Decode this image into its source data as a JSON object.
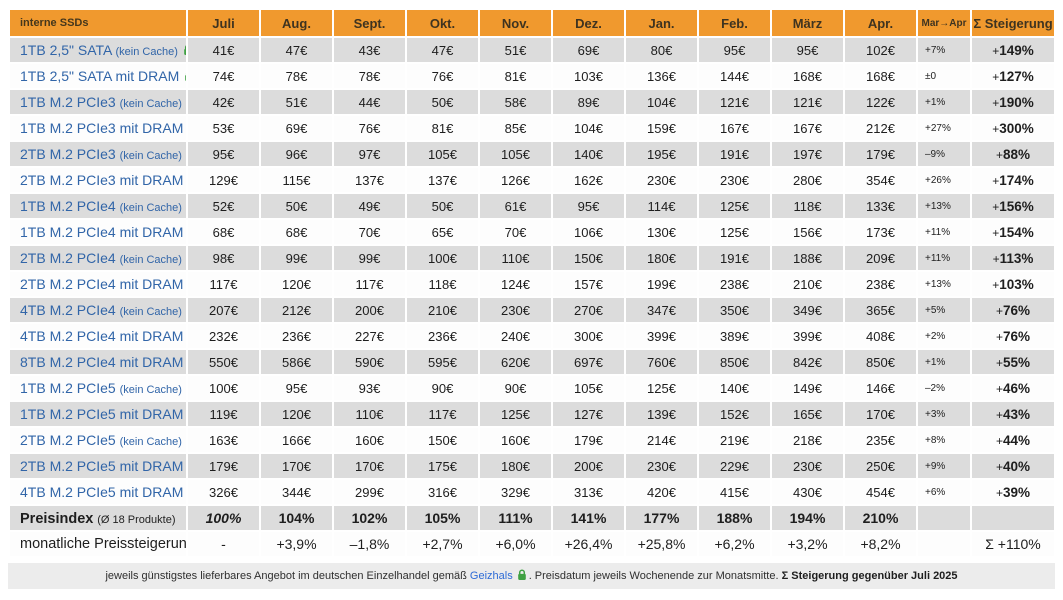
{
  "header": {
    "label": "interne SSDs",
    "mar_apr": "Mar→Apr",
    "steigerung": "Σ Steigerung"
  },
  "colors": {
    "accent_orange": "#f0992e",
    "stripe_gray": "#dcdcdc",
    "product_blue": "#3165a8",
    "lock_green": "#3fa142",
    "link_blue": "#2e6bd6"
  },
  "chart_data": {
    "type": "table",
    "title": "interne SSDs",
    "columns": [
      "interne SSDs",
      "Juli",
      "Aug.",
      "Sept.",
      "Okt.",
      "Nov.",
      "Dez.",
      "Jan.",
      "Feb.",
      "März",
      "Apr.",
      "Mar→Apr",
      "Σ Steigerung"
    ],
    "months": [
      "Juli",
      "Aug.",
      "Sept.",
      "Okt.",
      "Nov.",
      "Dez.",
      "Jan.",
      "Feb.",
      "März",
      "Apr."
    ],
    "rows": [
      {
        "label": "1TB 2,5\" SATA",
        "note": "(kein Cache)",
        "prices": [
          "41€",
          "47€",
          "43€",
          "47€",
          "51€",
          "69€",
          "80€",
          "95€",
          "95€",
          "102€"
        ],
        "mar_apr": "+7%",
        "steigerung": "+149%"
      },
      {
        "label": "1TB 2,5\" SATA mit DRAM",
        "note": "",
        "prices": [
          "74€",
          "78€",
          "78€",
          "76€",
          "81€",
          "103€",
          "136€",
          "144€",
          "168€",
          "168€"
        ],
        "mar_apr": "±0",
        "steigerung": "+127%"
      },
      {
        "label": "1TB M.2 PCIe3",
        "note": "(kein Cache)",
        "prices": [
          "42€",
          "51€",
          "44€",
          "50€",
          "58€",
          "89€",
          "104€",
          "121€",
          "121€",
          "122€"
        ],
        "mar_apr": "+1%",
        "steigerung": "+190%"
      },
      {
        "label": "1TB M.2 PCIe3 mit DRAM",
        "note": "",
        "prices": [
          "53€",
          "69€",
          "76€",
          "81€",
          "85€",
          "104€",
          "159€",
          "167€",
          "167€",
          "212€"
        ],
        "mar_apr": "+27%",
        "steigerung": "+300%"
      },
      {
        "label": "2TB M.2 PCIe3",
        "note": "(kein Cache)",
        "prices": [
          "95€",
          "96€",
          "97€",
          "105€",
          "105€",
          "140€",
          "195€",
          "191€",
          "197€",
          "179€"
        ],
        "mar_apr": "–9%",
        "steigerung": "+88%"
      },
      {
        "label": "2TB M.2 PCIe3 mit DRAM",
        "note": "",
        "prices": [
          "129€",
          "115€",
          "137€",
          "137€",
          "126€",
          "162€",
          "230€",
          "230€",
          "280€",
          "354€"
        ],
        "mar_apr": "+26%",
        "steigerung": "+174%"
      },
      {
        "label": "1TB M.2 PCIe4",
        "note": "(kein Cache)",
        "prices": [
          "52€",
          "50€",
          "49€",
          "50€",
          "61€",
          "95€",
          "114€",
          "125€",
          "118€",
          "133€"
        ],
        "mar_apr": "+13%",
        "steigerung": "+156%"
      },
      {
        "label": "1TB M.2 PCIe4 mit DRAM",
        "note": "",
        "prices": [
          "68€",
          "68€",
          "70€",
          "65€",
          "70€",
          "106€",
          "130€",
          "125€",
          "156€",
          "173€"
        ],
        "mar_apr": "+11%",
        "steigerung": "+154%"
      },
      {
        "label": "2TB M.2 PCIe4",
        "note": "(kein Cache)",
        "prices": [
          "98€",
          "99€",
          "99€",
          "100€",
          "110€",
          "150€",
          "180€",
          "191€",
          "188€",
          "209€"
        ],
        "mar_apr": "+11%",
        "steigerung": "+113%"
      },
      {
        "label": "2TB M.2 PCIe4 mit DRAM",
        "note": "",
        "prices": [
          "117€",
          "120€",
          "117€",
          "118€",
          "124€",
          "157€",
          "199€",
          "238€",
          "210€",
          "238€"
        ],
        "mar_apr": "+13%",
        "steigerung": "+103%"
      },
      {
        "label": "4TB M.2 PCIe4",
        "note": "(kein Cache)",
        "prices": [
          "207€",
          "212€",
          "200€",
          "210€",
          "230€",
          "270€",
          "347€",
          "350€",
          "349€",
          "365€"
        ],
        "mar_apr": "+5%",
        "steigerung": "+76%"
      },
      {
        "label": "4TB M.2 PCIe4 mit DRAM",
        "note": "",
        "prices": [
          "232€",
          "236€",
          "227€",
          "236€",
          "240€",
          "300€",
          "399€",
          "389€",
          "399€",
          "408€"
        ],
        "mar_apr": "+2%",
        "steigerung": "+76%"
      },
      {
        "label": "8TB M.2 PCIe4 mit DRAM",
        "note": "",
        "prices": [
          "550€",
          "586€",
          "590€",
          "595€",
          "620€",
          "697€",
          "760€",
          "850€",
          "842€",
          "850€"
        ],
        "mar_apr": "+1%",
        "steigerung": "+55%"
      },
      {
        "label": "1TB M.2 PCIe5",
        "note": "(kein Cache)",
        "prices": [
          "100€",
          "95€",
          "93€",
          "90€",
          "90€",
          "105€",
          "125€",
          "140€",
          "149€",
          "146€"
        ],
        "mar_apr": "–2%",
        "steigerung": "+46%"
      },
      {
        "label": "1TB M.2 PCIe5 mit DRAM",
        "note": "",
        "prices": [
          "119€",
          "120€",
          "110€",
          "117€",
          "125€",
          "127€",
          "139€",
          "152€",
          "165€",
          "170€"
        ],
        "mar_apr": "+3%",
        "steigerung": "+43%"
      },
      {
        "label": "2TB M.2 PCIe5",
        "note": "(kein Cache)",
        "prices": [
          "163€",
          "166€",
          "160€",
          "150€",
          "160€",
          "179€",
          "214€",
          "219€",
          "218€",
          "235€"
        ],
        "mar_apr": "+8%",
        "steigerung": "+44%"
      },
      {
        "label": "2TB M.2 PCIe5 mit DRAM",
        "note": "",
        "prices": [
          "179€",
          "170€",
          "170€",
          "175€",
          "180€",
          "200€",
          "230€",
          "229€",
          "230€",
          "250€"
        ],
        "mar_apr": "+9%",
        "steigerung": "+40%"
      },
      {
        "label": "4TB M.2 PCIe5 mit DRAM",
        "note": "",
        "prices": [
          "326€",
          "344€",
          "299€",
          "316€",
          "329€",
          "313€",
          "420€",
          "415€",
          "430€",
          "454€"
        ],
        "mar_apr": "+6%",
        "steigerung": "+39%"
      }
    ],
    "preisindex": {
      "label": "Preisindex",
      "note": "(Ø 18 Produkte)",
      "values": [
        "100%",
        "104%",
        "102%",
        "105%",
        "111%",
        "141%",
        "177%",
        "188%",
        "194%",
        "210%"
      ]
    },
    "monthly": {
      "label": "monatliche Preissteigerung",
      "values": [
        "-",
        "+3,9%",
        "–1,8%",
        "+2,7%",
        "+6,0%",
        "+26,4%",
        "+25,8%",
        "+6,2%",
        "+3,2%",
        "+8,2%"
      ],
      "total": "Σ +110%"
    }
  },
  "footer": {
    "part1": "jeweils günstigstes lieferbares Angebot im deutschen Einzelhandel gemäß ",
    "link": "Geizhals",
    "part2": ". Preisdatum jeweils Wochenende zur Monatsmitte. ",
    "bold": "Σ Steigerung gegenüber Juli 2025"
  }
}
